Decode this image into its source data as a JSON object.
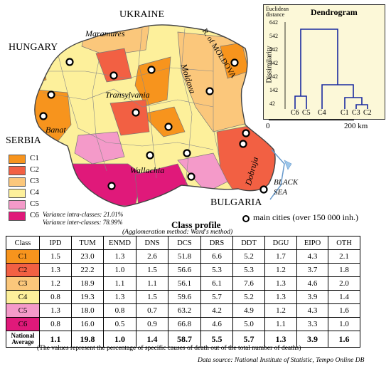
{
  "map": {
    "countries": {
      "ukraine": "UKRAINE",
      "hungary": "HUNGARY",
      "serbia": "SERBIA",
      "bulgaria": "BULGARIA",
      "moldova": "R. of MOLDOVA",
      "sea": "BLACK SEA"
    },
    "regions": {
      "maramures": "Maramures",
      "moldova": "Moldova",
      "transylvania": "Transylvania",
      "banat": "Banat",
      "wallachia": "Wallachia",
      "dobruja": "Dobruja"
    },
    "scale": {
      "start": "0",
      "end": "200 km"
    },
    "cities_label": "main cities (over 150 000 inh.)",
    "class_colors": {
      "C1": "#f7941d",
      "C2": "#f26043",
      "C3": "#fbc77b",
      "C4": "#fdf09b",
      "C5": "#f49ac9",
      "C6": "#e0197a"
    }
  },
  "legend": {
    "items": [
      {
        "label": "C1",
        "color": "#f7941d"
      },
      {
        "label": "C2",
        "color": "#f26043"
      },
      {
        "label": "C3",
        "color": "#fbc77b"
      },
      {
        "label": "C4",
        "color": "#fdf09b"
      },
      {
        "label": "C5",
        "color": "#f49ac9"
      },
      {
        "label": "C6",
        "color": "#e0197a"
      }
    ],
    "variance_intra": "Variance intra-classes: 21.01%",
    "variance_inter": "Variance inter-classes: 78.99%"
  },
  "dendrogram": {
    "title": "Dendrogram",
    "corner_label_1": "Euclidean",
    "corner_label_2": "distance",
    "ylabel": "Dissimilarity",
    "yticks": [
      "642",
      "542",
      "442",
      "342",
      "242",
      "142",
      "42"
    ],
    "leaves": [
      "C6",
      "C5",
      "C4",
      "C1",
      "C3",
      "C2"
    ]
  },
  "profile": {
    "title": "Class profile",
    "subtitle": "(Agglomeration method: Ward's method)",
    "headers": [
      "Class",
      "IPD",
      "TUM",
      "ENMD",
      "DNS",
      "DCS",
      "DRS",
      "DDT",
      "DGU",
      "EIPO",
      "OTH"
    ],
    "rows": [
      {
        "cls": "C1",
        "color": "#f7941d",
        "values": [
          "1.5",
          "23.0",
          "1.3",
          "2.6",
          "51.8",
          "6.6",
          "5.2",
          "1.7",
          "4.3",
          "2.1"
        ]
      },
      {
        "cls": "C2",
        "color": "#f26043",
        "values": [
          "1.3",
          "22.2",
          "1.0",
          "1.5",
          "56.6",
          "5.3",
          "5.3",
          "1.2",
          "3.7",
          "1.8"
        ]
      },
      {
        "cls": "C3",
        "color": "#fbc77b",
        "values": [
          "1.2",
          "18.9",
          "1.1",
          "1.1",
          "56.1",
          "6.1",
          "7.6",
          "1.3",
          "4.6",
          "2.0"
        ]
      },
      {
        "cls": "C4",
        "color": "#fdf09b",
        "values": [
          "0.8",
          "19.3",
          "1.3",
          "1.5",
          "59.6",
          "5.7",
          "5.2",
          "1.3",
          "3.9",
          "1.4"
        ]
      },
      {
        "cls": "C5",
        "color": "#f49ac9",
        "values": [
          "1.3",
          "18.0",
          "0.8",
          "0.7",
          "63.2",
          "4.2",
          "4.9",
          "1.2",
          "4.3",
          "1.6"
        ]
      },
      {
        "cls": "C6",
        "color": "#e0197a",
        "values": [
          "0.8",
          "16.0",
          "0.5",
          "0.9",
          "66.8",
          "4.6",
          "5.0",
          "1.1",
          "3.3",
          "1.0"
        ]
      }
    ],
    "average": {
      "cls": "National Average",
      "values": [
        "1.1",
        "19.8",
        "1.0",
        "1.4",
        "58.7",
        "5.5",
        "5.7",
        "1.3",
        "3.9",
        "1.6"
      ]
    }
  },
  "notes": {
    "values_note": "(The values represent the percentage of specific causes of death out of the total number of deaths)",
    "source": "Data source: National Institute of Statistic, Tempo Online DB"
  }
}
